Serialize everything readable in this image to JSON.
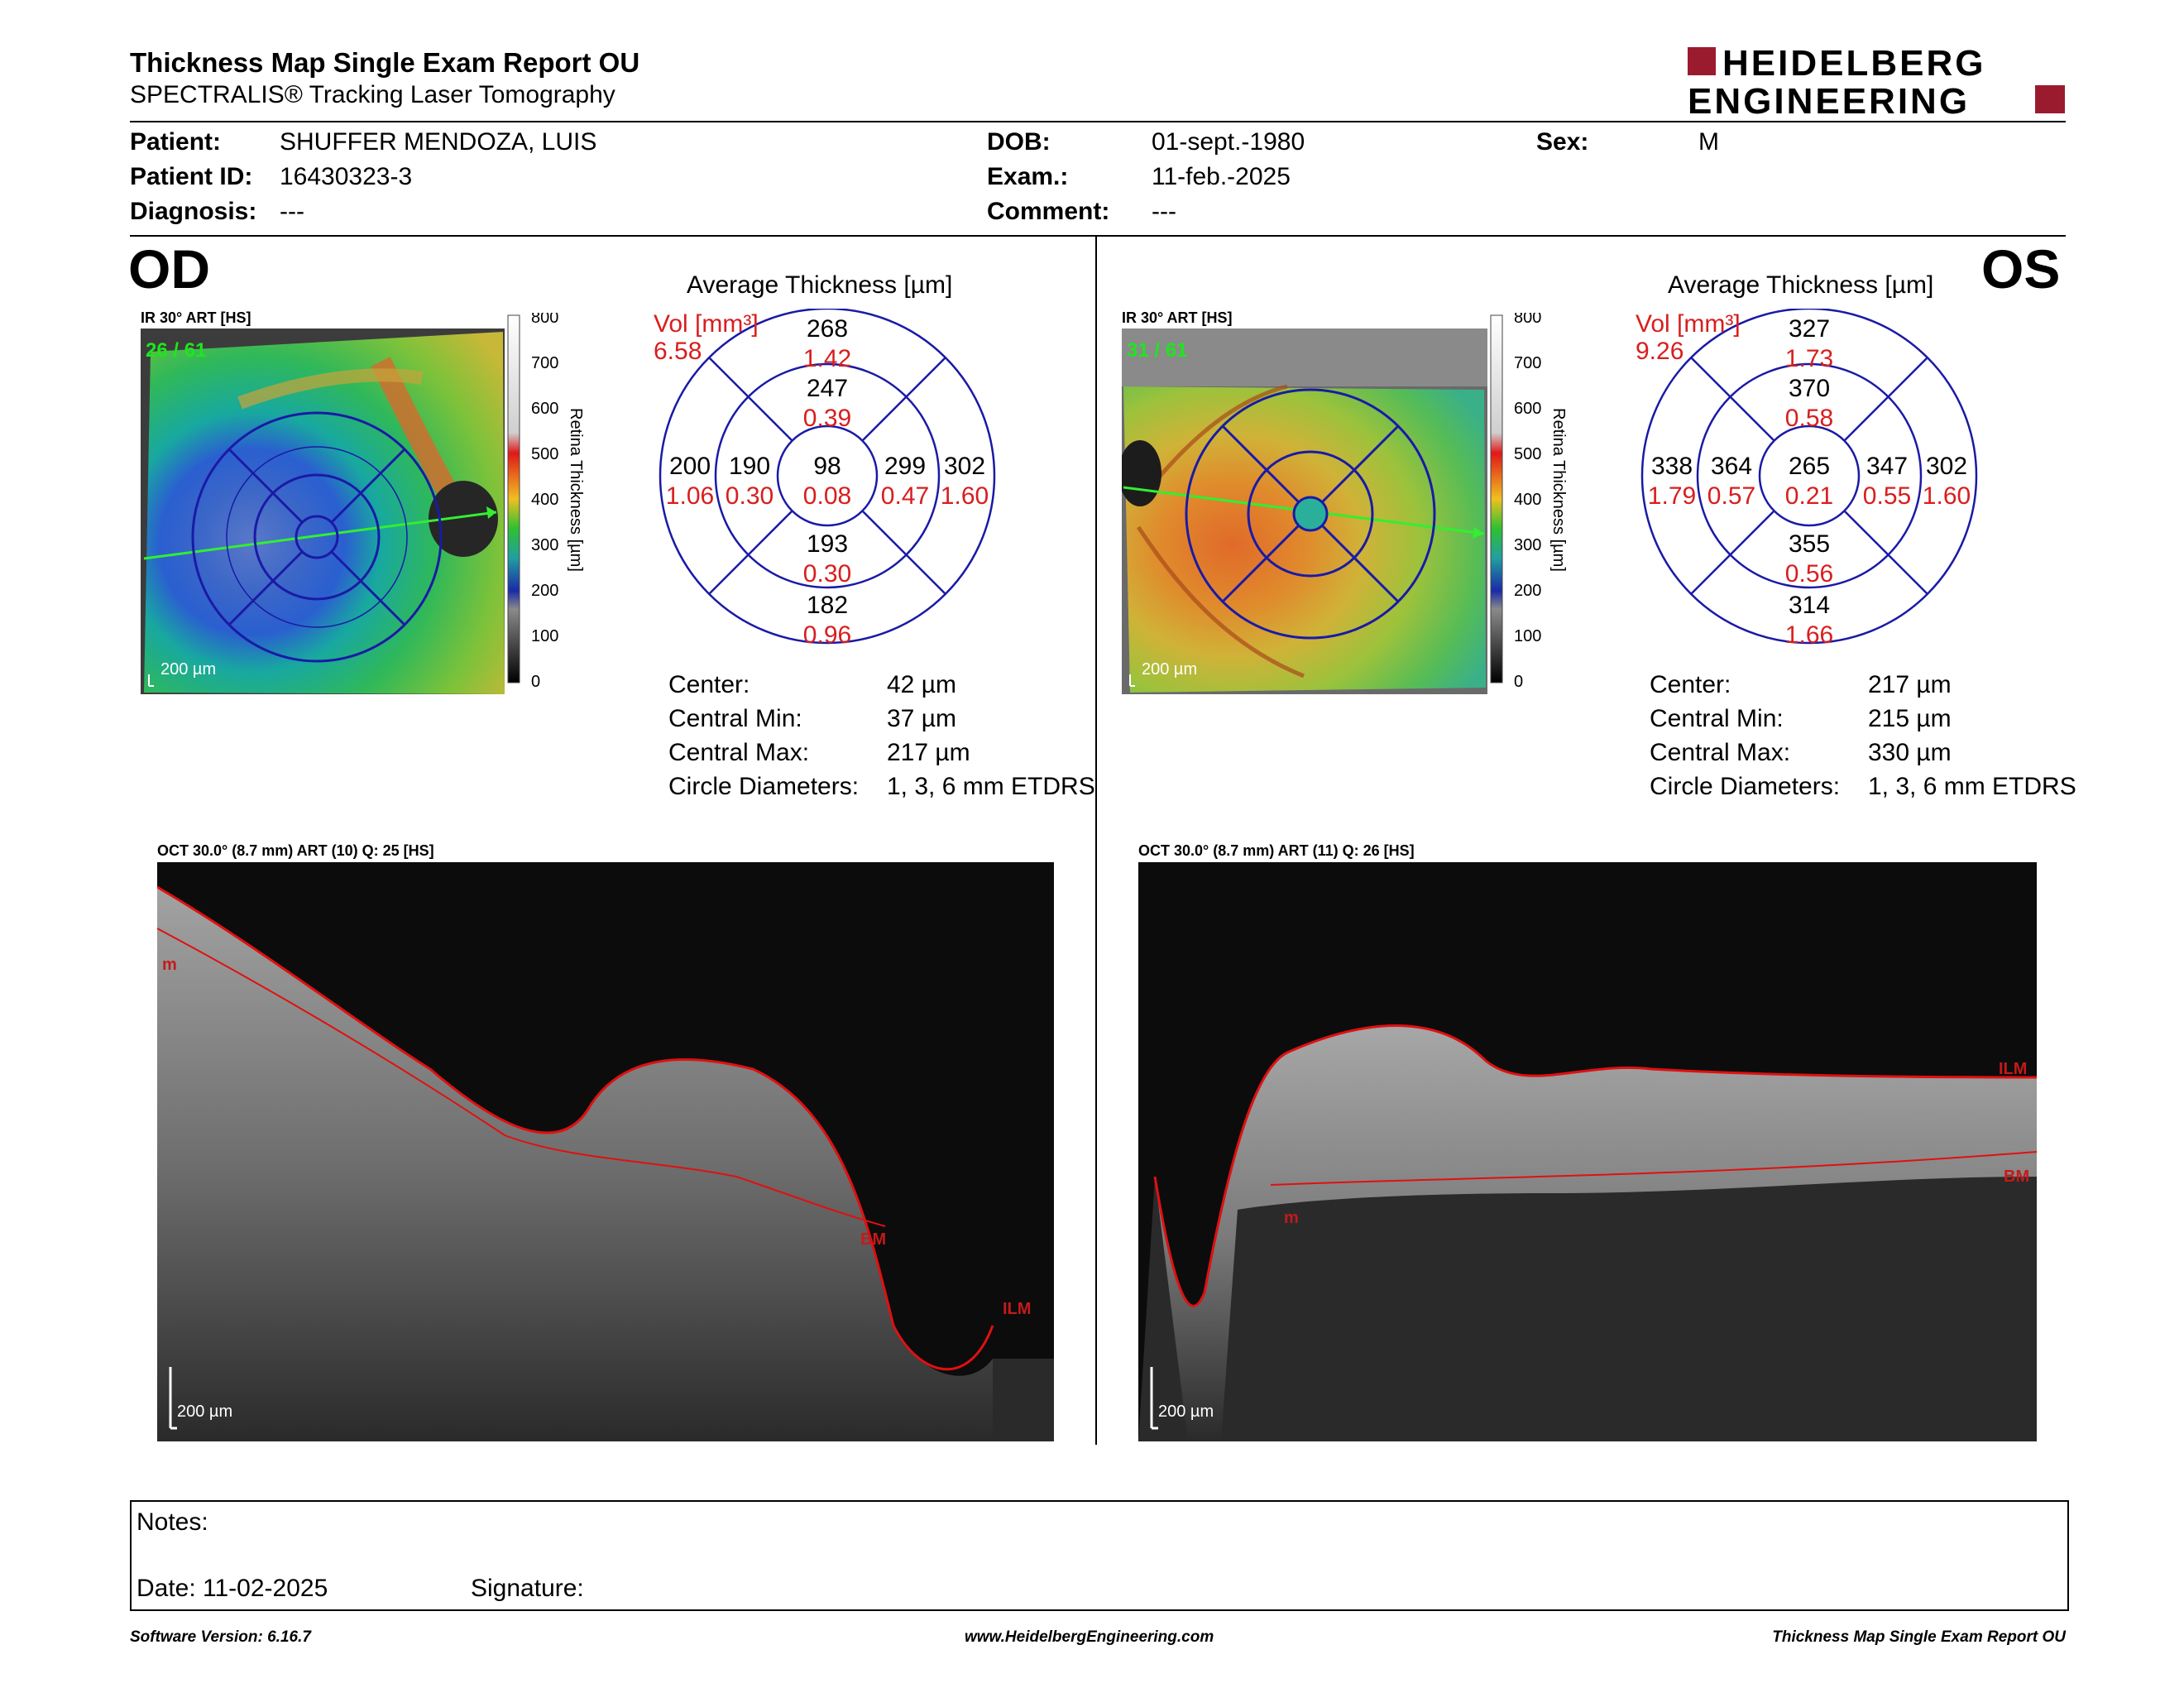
{
  "header": {
    "title": "Thickness Map Single Exam Report OU",
    "subtitle": "SPECTRALIS® Tracking Laser Tomography",
    "logo_line1": "HEIDELBERG",
    "logo_line2": "ENGINEERING",
    "logo_color": "#9b1b2e"
  },
  "patient": {
    "patient_label": "Patient:",
    "patient_value": "SHUFFER MENDOZA, LUIS",
    "id_label": "Patient ID:",
    "id_value": "16430323-3",
    "diagnosis_label": "Diagnosis:",
    "diagnosis_value": "---",
    "dob_label": "DOB:",
    "dob_value": "01-sept.-1980",
    "exam_label": "Exam.:",
    "exam_value": "11-feb.-2025",
    "comment_label": "Comment:",
    "comment_value": "---",
    "sex_label": "Sex:",
    "sex_value": "M"
  },
  "od": {
    "eye_label": "OD",
    "ir_label": "IR 30° ART [HS]",
    "scan_counter": "26 / 61",
    "scale_label": "200 µm",
    "avg_title": "Average Thickness [µm]",
    "vol_label": "Vol [mm³]",
    "vol_total": "6.58",
    "grid": {
      "sup_outer_t": "268",
      "sup_outer_v": "1.42",
      "sup_inner_t": "247",
      "sup_inner_v": "0.39",
      "temp_outer_t": "200",
      "temp_outer_v": "1.06",
      "temp_inner_t": "190",
      "temp_inner_v": "0.30",
      "center_t": "98",
      "center_v": "0.08",
      "nas_inner_t": "299",
      "nas_inner_v": "0.47",
      "nas_outer_t": "302",
      "nas_outer_v": "1.60",
      "inf_inner_t": "193",
      "inf_inner_v": "0.30",
      "inf_outer_t": "182",
      "inf_outer_v": "0.96"
    },
    "stats": [
      {
        "label": "Center:",
        "value": "42 µm"
      },
      {
        "label": "Central Min:",
        "value": "37 µm"
      },
      {
        "label": "Central Max:",
        "value": "217 µm"
      },
      {
        "label": "Circle Diameters:",
        "value": "1, 3, 6 mm ETDRS"
      }
    ],
    "oct_label": "OCT 30.0° (8.7 mm) ART (10) Q: 25 [HS]",
    "oct_scale": "200 µm",
    "tags": {
      "m": "m",
      "bm": "BM",
      "ilm": "ILM"
    }
  },
  "os": {
    "eye_label": "OS",
    "ir_label": "IR 30° ART [HS]",
    "scan_counter": "31 / 61",
    "scale_label": "200 µm",
    "avg_title": "Average Thickness [µm]",
    "vol_label": "Vol [mm³]",
    "vol_total": "9.26",
    "grid": {
      "sup_outer_t": "327",
      "sup_outer_v": "1.73",
      "sup_inner_t": "370",
      "sup_inner_v": "0.58",
      "temp_outer_t": "338",
      "temp_outer_v": "1.79",
      "temp_inner_t": "364",
      "temp_inner_v": "0.57",
      "center_t": "265",
      "center_v": "0.21",
      "nas_inner_t": "347",
      "nas_inner_v": "0.55",
      "nas_outer_t": "302",
      "nas_outer_v": "1.60",
      "inf_inner_t": "355",
      "inf_inner_v": "0.56",
      "inf_outer_t": "314",
      "inf_outer_v": "1.66"
    },
    "stats": [
      {
        "label": "Center:",
        "value": "217 µm"
      },
      {
        "label": "Central Min:",
        "value": "215 µm"
      },
      {
        "label": "Central Max:",
        "value": "330 µm"
      },
      {
        "label": "Circle Diameters:",
        "value": "1, 3, 6 mm ETDRS"
      }
    ],
    "oct_label": "OCT 30.0° (8.7 mm) ART (11) Q: 26 [HS]",
    "oct_scale": "200 µm",
    "tags": {
      "ilm": "ILM",
      "bm": "BM",
      "m": "m"
    }
  },
  "colorbar": {
    "ticks": [
      "800",
      "700",
      "600",
      "500",
      "400",
      "300",
      "200",
      "100",
      "0"
    ],
    "title": "Retina  Thickness [µm]"
  },
  "notes": {
    "notes_label": "Notes:",
    "date_label": "Date: 11-02-2025",
    "signature_label": "Signature:"
  },
  "footer": {
    "left": "Software Version: 6.16.7",
    "center": "www.HeidelbergEngineering.com",
    "right": "Thickness Map Single Exam Report OU"
  },
  "colors": {
    "value_red": "#d81e1e",
    "ring_blue": "#1a1aa6",
    "counter_green": "#1ee61e",
    "layer_red": "#e01010"
  }
}
